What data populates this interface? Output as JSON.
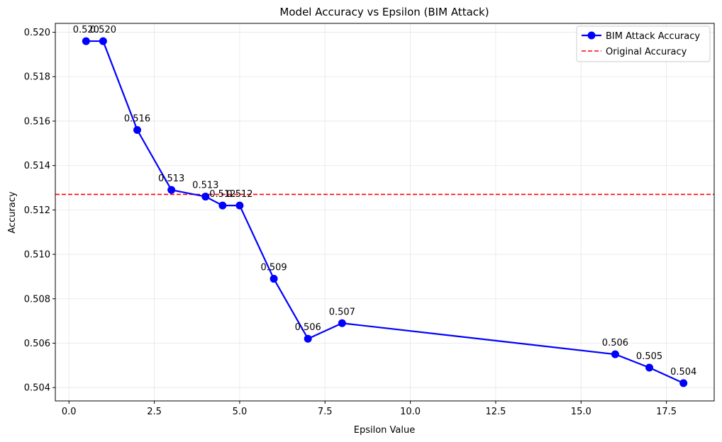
{
  "chart_data": {
    "type": "line",
    "title": "Model Accuracy vs Epsilon (BIM Attack)",
    "xlabel": "Epsilon Value",
    "ylabel": "Accuracy",
    "xlim": [
      -0.4,
      18.9
    ],
    "ylim": [
      0.5034,
      0.5204
    ],
    "xticks": [
      0.0,
      2.5,
      5.0,
      7.5,
      10.0,
      12.5,
      15.0,
      17.5
    ],
    "xtick_labels": [
      "0.0",
      "2.5",
      "5.0",
      "7.5",
      "10.0",
      "12.5",
      "15.0",
      "17.5"
    ],
    "yticks": [
      0.504,
      0.506,
      0.508,
      0.51,
      0.512,
      0.514,
      0.516,
      0.518,
      0.52
    ],
    "ytick_labels": [
      "0.504",
      "0.506",
      "0.508",
      "0.510",
      "0.512",
      "0.514",
      "0.516",
      "0.518",
      "0.520"
    ],
    "grid": true,
    "legend_position": "top-right",
    "series": [
      {
        "name": "BIM Attack Accuracy",
        "color": "#0000ff",
        "marker": "circle",
        "x": [
          0.5,
          1,
          2,
          3,
          4,
          4.5,
          5,
          6,
          7,
          8,
          16,
          17,
          18
        ],
        "y": [
          0.5196,
          0.5196,
          0.5156,
          0.5129,
          0.5126,
          0.5122,
          0.5122,
          0.5089,
          0.5062,
          0.5069,
          0.5055,
          0.5049,
          0.5042
        ],
        "labels": [
          "0.520",
          "0.520",
          "0.516",
          "0.513",
          "0.513",
          "0.512",
          "0.512",
          "0.509",
          "0.506",
          "0.507",
          "0.506",
          "0.505",
          "0.504"
        ]
      }
    ],
    "reference_lines": [
      {
        "name": "Original Accuracy",
        "orientation": "horizontal",
        "y": 0.5127,
        "color": "#ff0000",
        "style": "dashed"
      }
    ]
  }
}
